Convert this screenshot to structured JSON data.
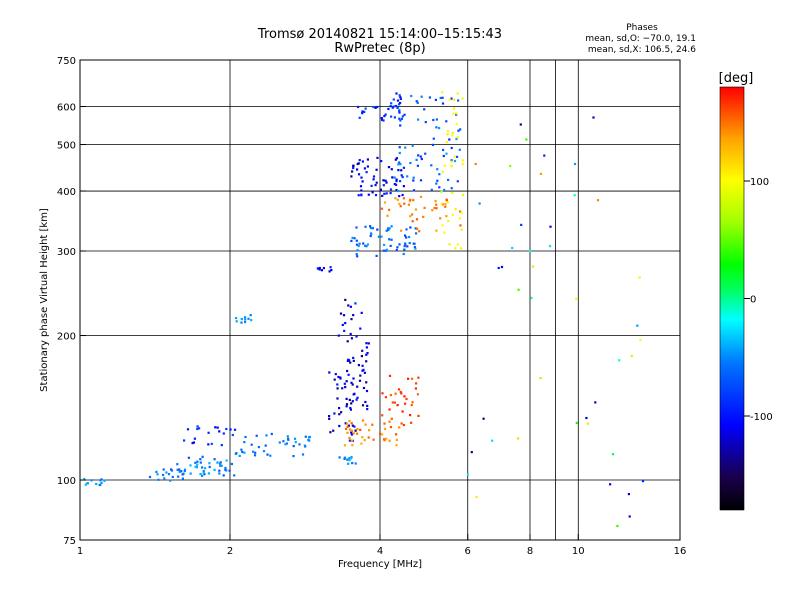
{
  "chart_data": {
    "type": "scatter",
    "title": "Tromsø 20140821 15:14:00–15:15:43",
    "subtitle": "RwPretec (8p)",
    "stats": {
      "heading": "Phases",
      "line1": "mean, sd,O: −70.0, 19.1",
      "line2": "mean, sd,X: 106.5, 24.6"
    },
    "xlabel": "Frequency [MHz]",
    "ylabel": "Stationary phase Virtual Height [km]",
    "x_scale": "log2",
    "y_scale": "log",
    "xlim": [
      1,
      16
    ],
    "ylim": [
      75,
      750
    ],
    "x_ticks": [
      1,
      2,
      4,
      6,
      8,
      10,
      16
    ],
    "x_tick_labels": [
      "1",
      "2",
      "4",
      "6",
      "8",
      "10",
      "16"
    ],
    "x_grid": [
      2,
      4,
      6,
      8,
      9,
      10
    ],
    "y_ticks": [
      75,
      100,
      200,
      300,
      400,
      500,
      600,
      750
    ],
    "y_tick_labels": [
      "75",
      "100",
      "200",
      "300",
      "400",
      "500",
      "600",
      "750"
    ],
    "y_grid": [
      100,
      200,
      300,
      400,
      500,
      600
    ],
    "grid": true,
    "colorbar": {
      "label": "[deg]",
      "range": [
        -180,
        180
      ],
      "ticks": [
        100,
        0,
        -100
      ],
      "tick_labels": [
        "100",
        "0",
        "-100"
      ],
      "colors": [
        "#000000",
        "#1a0050",
        "#0000ff",
        "#0078ff",
        "#00ffff",
        "#00ff60",
        "#00ff00",
        "#a0ff00",
        "#ffff00",
        "#ffa000",
        "#ff0000"
      ]
    },
    "clusters": [
      {
        "f": [
          1.0,
          1.12
        ],
        "h": [
          97,
          101
        ],
        "phase": [
          -60,
          -30
        ],
        "n": 12
      },
      {
        "f": [
          1.38,
          1.62
        ],
        "h": [
          99,
          108
        ],
        "phase": [
          -70,
          -40
        ],
        "n": 22
      },
      {
        "f": [
          1.62,
          2.05
        ],
        "h": [
          102,
          112
        ],
        "phase": [
          -75,
          -35
        ],
        "n": 40
      },
      {
        "f": [
          1.6,
          2.05
        ],
        "h": [
          118,
          130
        ],
        "phase": [
          -120,
          -70
        ],
        "n": 20
      },
      {
        "f": [
          2.05,
          2.9
        ],
        "h": [
          112,
          126
        ],
        "phase": [
          -70,
          -40
        ],
        "n": 40
      },
      {
        "f": [
          2.05,
          2.25
        ],
        "h": [
          212,
          222
        ],
        "phase": [
          -60,
          -40
        ],
        "n": 10
      },
      {
        "f": [
          3.0,
          3.2
        ],
        "h": [
          270,
          278
        ],
        "phase": [
          -120,
          -90
        ],
        "n": 8
      },
      {
        "f": [
          3.15,
          3.6
        ],
        "h": [
          120,
          170
        ],
        "phase": [
          -140,
          -90
        ],
        "n": 40
      },
      {
        "f": [
          3.4,
          3.8
        ],
        "h": [
          140,
          200
        ],
        "phase": [
          -150,
          -100
        ],
        "n": 40
      },
      {
        "f": [
          3.3,
          3.7
        ],
        "h": [
          200,
          245
        ],
        "phase": [
          -140,
          -80
        ],
        "n": 15
      },
      {
        "f": [
          3.3,
          3.6
        ],
        "h": [
          108,
          112
        ],
        "phase": [
          -60,
          -30
        ],
        "n": 12
      },
      {
        "f": [
          3.4,
          4.5
        ],
        "h": [
          118,
          135
        ],
        "phase": [
          130,
          160
        ],
        "n": 40
      },
      {
        "f": [
          4.0,
          4.8
        ],
        "h": [
          130,
          165
        ],
        "phase": [
          150,
          175
        ],
        "n": 30
      },
      {
        "f": [
          3.5,
          4.8
        ],
        "h": [
          290,
          340
        ],
        "phase": [
          -80,
          -40
        ],
        "n": 60
      },
      {
        "f": [
          3.5,
          4.5
        ],
        "h": [
          390,
          470
        ],
        "phase": [
          -130,
          -90
        ],
        "n": 60
      },
      {
        "f": [
          4.0,
          5.8
        ],
        "h": [
          330,
          390
        ],
        "phase": [
          130,
          160
        ],
        "n": 40
      },
      {
        "f": [
          4.2,
          5.8
        ],
        "h": [
          400,
          640
        ],
        "phase": [
          -90,
          -40
        ],
        "n": 80
      },
      {
        "f": [
          5.3,
          5.9
        ],
        "h": [
          300,
          650
        ],
        "phase": [
          90,
          110
        ],
        "n": 40
      },
      {
        "f": [
          3.6,
          4.5
        ],
        "h": [
          560,
          640
        ],
        "phase": [
          -110,
          -70
        ],
        "n": 30
      },
      {
        "f": [
          6.0,
          9.2
        ],
        "h": [
          78,
          620
        ],
        "phase": [
          -150,
          150
        ],
        "n": 24
      },
      {
        "f": [
          9.5,
          14.0
        ],
        "h": [
          78,
          620
        ],
        "phase": [
          -150,
          150
        ],
        "n": 20
      }
    ]
  }
}
